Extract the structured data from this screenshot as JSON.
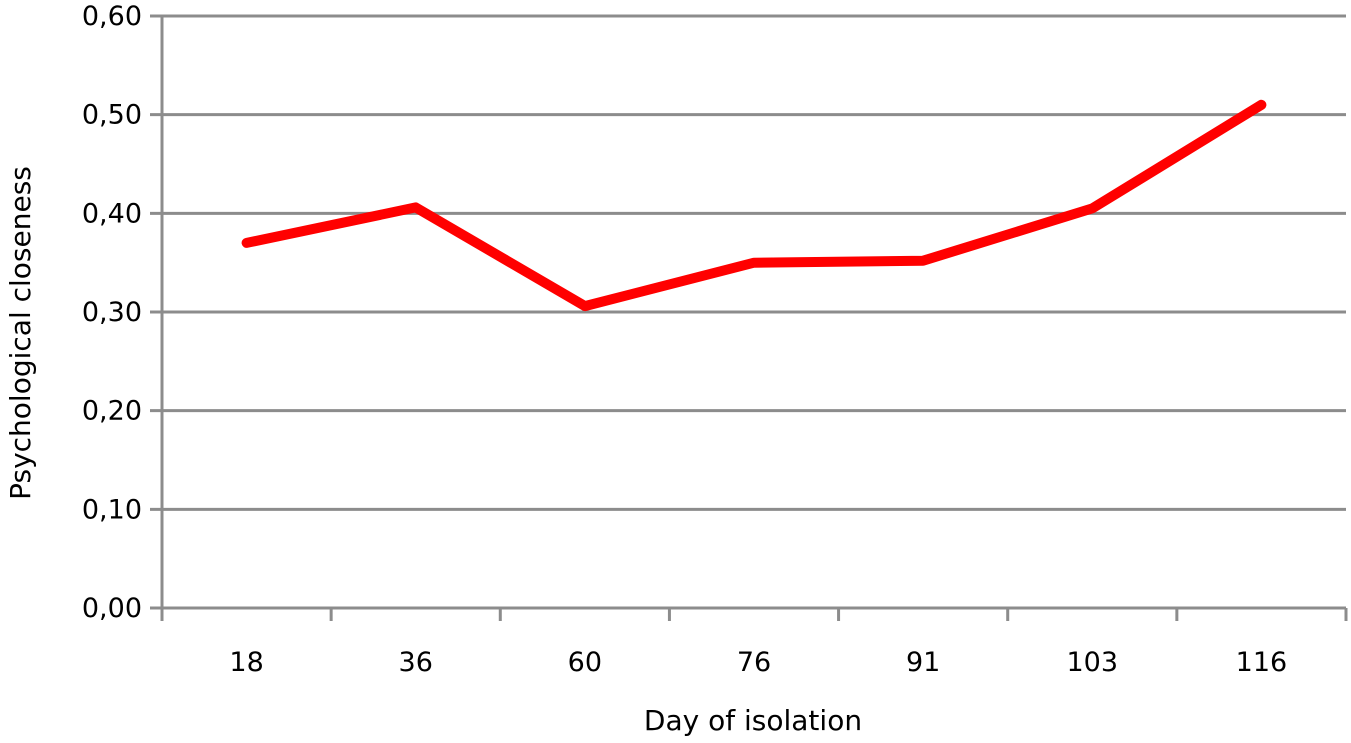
{
  "chart_data": {
    "type": "line",
    "categories": [
      "18",
      "36",
      "60",
      "76",
      "91",
      "103",
      "116"
    ],
    "series": [
      {
        "values": [
          0.37,
          0.406,
          0.306,
          0.35,
          0.352,
          0.405,
          0.51
        ]
      }
    ],
    "title": "",
    "xlabel": "Day of isolation",
    "ylabel": "Psychological closeness",
    "ylim": [
      0,
      0.6
    ],
    "yticks": [
      "0,00",
      "0,10",
      "0,20",
      "0,30",
      "0,40",
      "0,50",
      "0,60"
    ],
    "grid": true,
    "legend": "none",
    "colors": {
      "series": "#ff0000",
      "grid": "#8c8c8c"
    }
  }
}
